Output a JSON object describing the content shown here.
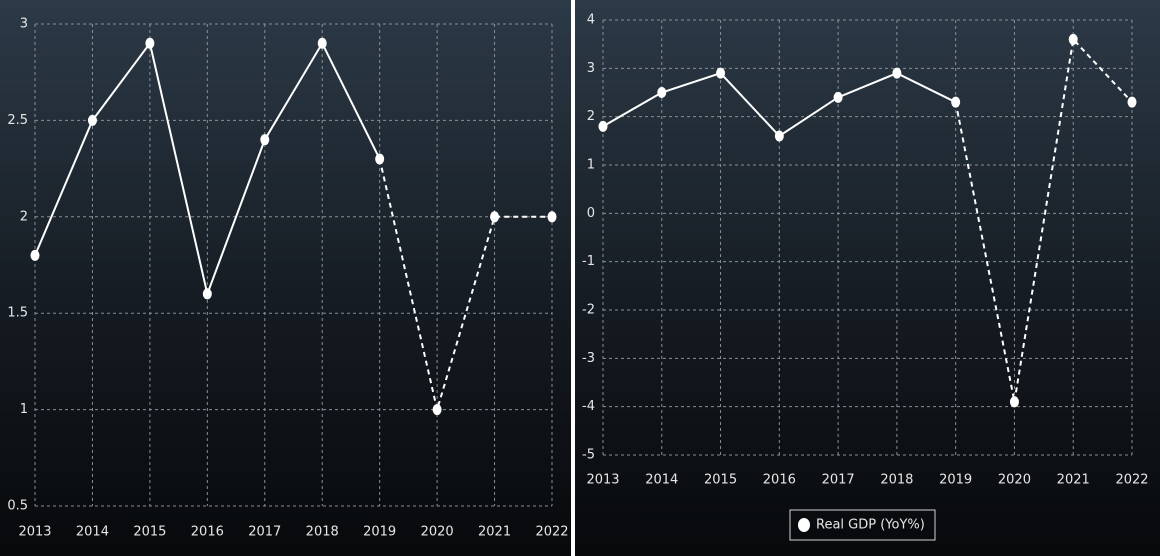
{
  "chart_data": [
    {
      "type": "line",
      "categories": [
        "2013",
        "2014",
        "2015",
        "2016",
        "2017",
        "2018",
        "2019",
        "2020",
        "2021",
        "2022"
      ],
      "values": [
        1.8,
        2.5,
        2.9,
        1.6,
        2.4,
        2.9,
        2.3,
        1.0,
        2.0,
        2.0
      ],
      "color": "#ffffff",
      "dashed_from": "2019",
      "ylim": [
        0.5,
        3
      ],
      "yticks": [
        0.5,
        1,
        1.5,
        2,
        2.5,
        3
      ],
      "grid": true
    },
    {
      "type": "line",
      "categories": [
        "2013",
        "2014",
        "2015",
        "2016",
        "2017",
        "2018",
        "2019",
        "2020",
        "2021",
        "2022"
      ],
      "series": [
        {
          "name": "Real GDP (YoY%)",
          "color": "#ffffff",
          "values": [
            1.8,
            2.5,
            2.9,
            1.6,
            2.4,
            2.9,
            2.3,
            -3.9,
            3.6,
            2.3
          ]
        }
      ],
      "dashed_from": "2019",
      "ylim": [
        -5,
        4
      ],
      "yticks": [
        -5,
        -4,
        -3,
        -2,
        -1,
        0,
        1,
        2,
        3,
        4
      ],
      "grid": true,
      "legend": "bottom"
    }
  ]
}
